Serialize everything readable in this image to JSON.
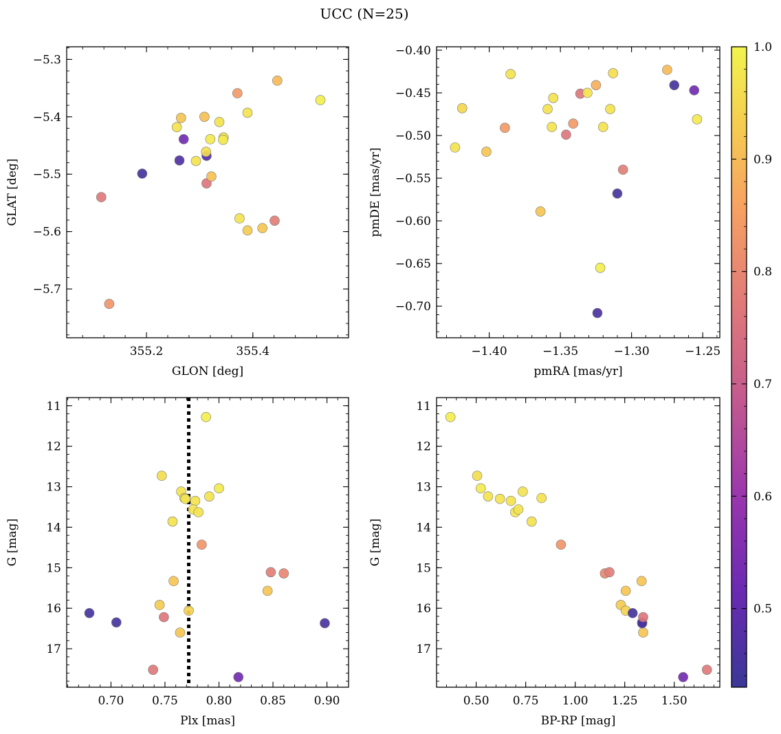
{
  "figure": {
    "title": "UCC (N=25)"
  },
  "colorbar": {
    "cmap": "plasma",
    "range": [
      0.43,
      1.0
    ],
    "ticks": [
      0.5,
      0.6,
      0.7,
      0.8,
      0.9,
      1.0
    ],
    "tick_labels": [
      "0.5",
      "0.6",
      "0.7",
      "0.8",
      "0.9",
      "1.0"
    ]
  },
  "chart_data": [
    {
      "type": "scatter",
      "title": "",
      "xlabel": "GLON [deg]",
      "ylabel": "GLAT [deg]",
      "xlim": [
        355.05,
        355.58
      ],
      "ylim": [
        -5.785,
        -5.278
      ],
      "y_inverted": false,
      "xticks": [
        355.2,
        355.4
      ],
      "xtick_labels": [
        "355.2",
        "355.4"
      ],
      "yticks": [
        -5.7,
        -5.6,
        -5.5,
        -5.4,
        -5.3
      ],
      "ytick_labels": [
        "−5.7",
        "−5.6",
        "−5.5",
        "−5.4",
        "−5.3"
      ],
      "points": [
        {
          "x": 355.192,
          "y": -5.499,
          "c": 0.45
        },
        {
          "x": 355.262,
          "y": -5.476,
          "c": 0.47
        },
        {
          "x": 355.313,
          "y": -5.468,
          "c": 0.47
        },
        {
          "x": 355.27,
          "y": -5.439,
          "c": 0.53
        },
        {
          "x": 355.115,
          "y": -5.54,
          "c": 0.77
        },
        {
          "x": 355.313,
          "y": -5.516,
          "c": 0.76
        },
        {
          "x": 355.441,
          "y": -5.581,
          "c": 0.78
        },
        {
          "x": 355.13,
          "y": -5.726,
          "c": 0.83
        },
        {
          "x": 355.371,
          "y": -5.359,
          "c": 0.84
        },
        {
          "x": 355.446,
          "y": -5.337,
          "c": 0.9
        },
        {
          "x": 355.265,
          "y": -5.402,
          "c": 0.92
        },
        {
          "x": 355.309,
          "y": -5.4,
          "c": 0.91
        },
        {
          "x": 355.322,
          "y": -5.504,
          "c": 0.91
        },
        {
          "x": 355.39,
          "y": -5.598,
          "c": 0.93
        },
        {
          "x": 355.418,
          "y": -5.594,
          "c": 0.92
        },
        {
          "x": 355.257,
          "y": -5.418,
          "c": 0.97
        },
        {
          "x": 355.312,
          "y": -5.461,
          "c": 0.96
        },
        {
          "x": 355.32,
          "y": -5.439,
          "c": 0.98
        },
        {
          "x": 355.293,
          "y": -5.477,
          "c": 0.97
        },
        {
          "x": 355.337,
          "y": -5.409,
          "c": 0.97
        },
        {
          "x": 355.345,
          "y": -5.436,
          "c": 0.97
        },
        {
          "x": 355.344,
          "y": -5.44,
          "c": 0.98
        },
        {
          "x": 355.39,
          "y": -5.393,
          "c": 0.97
        },
        {
          "x": 355.375,
          "y": -5.577,
          "c": 0.97
        },
        {
          "x": 355.527,
          "y": -5.371,
          "c": 0.99
        }
      ]
    },
    {
      "type": "scatter",
      "title": "",
      "xlabel": "pmRA [mas/yr]",
      "ylabel": "pmDE [mas/yr]",
      "xlim": [
        -1.437,
        -1.238
      ],
      "ylim": [
        -0.737,
        -0.396
      ],
      "y_inverted": false,
      "xticks": [
        -1.4,
        -1.35,
        -1.3,
        -1.25
      ],
      "xtick_labels": [
        "−1.40",
        "−1.35",
        "−1.30",
        "−1.25"
      ],
      "yticks": [
        -0.7,
        -0.65,
        -0.6,
        -0.55,
        -0.5,
        -0.45,
        -0.4
      ],
      "ytick_labels": [
        "−0.70",
        "−0.65",
        "−0.60",
        "−0.55",
        "−0.50",
        "−0.45",
        "−0.40"
      ],
      "points": [
        {
          "x": -1.27,
          "y": -0.441,
          "c": 0.45
        },
        {
          "x": -1.31,
          "y": -0.568,
          "c": 0.45
        },
        {
          "x": -1.324,
          "y": -0.708,
          "c": 0.46
        },
        {
          "x": -1.256,
          "y": -0.447,
          "c": 0.53
        },
        {
          "x": -1.346,
          "y": -0.499,
          "c": 0.76
        },
        {
          "x": -1.336,
          "y": -0.451,
          "c": 0.76
        },
        {
          "x": -1.306,
          "y": -0.54,
          "c": 0.78
        },
        {
          "x": -1.389,
          "y": -0.491,
          "c": 0.84
        },
        {
          "x": -1.341,
          "y": -0.486,
          "c": 0.84
        },
        {
          "x": -1.325,
          "y": -0.441,
          "c": 0.88
        },
        {
          "x": -1.275,
          "y": -0.423,
          "c": 0.9
        },
        {
          "x": -1.402,
          "y": -0.519,
          "c": 0.92
        },
        {
          "x": -1.364,
          "y": -0.589,
          "c": 0.92
        },
        {
          "x": -1.419,
          "y": -0.468,
          "c": 0.95
        },
        {
          "x": -1.424,
          "y": -0.514,
          "c": 0.97
        },
        {
          "x": -1.385,
          "y": -0.428,
          "c": 0.97
        },
        {
          "x": -1.355,
          "y": -0.456,
          "c": 0.97
        },
        {
          "x": -1.359,
          "y": -0.469,
          "c": 0.97
        },
        {
          "x": -1.356,
          "y": -0.49,
          "c": 0.97
        },
        {
          "x": -1.331,
          "y": -0.45,
          "c": 0.97
        },
        {
          "x": -1.313,
          "y": -0.427,
          "c": 0.96
        },
        {
          "x": -1.315,
          "y": -0.469,
          "c": 0.97
        },
        {
          "x": -1.32,
          "y": -0.49,
          "c": 0.97
        },
        {
          "x": -1.322,
          "y": -0.655,
          "c": 0.99
        },
        {
          "x": -1.254,
          "y": -0.481,
          "c": 0.98
        }
      ]
    },
    {
      "type": "scatter",
      "title": "",
      "xlabel": "Plx [mas]",
      "ylabel": "G [mag]",
      "xlim": [
        0.659,
        0.92
      ],
      "ylim": [
        17.95,
        10.8
      ],
      "y_inverted": true,
      "vline": {
        "x": 0.772,
        "style": "dotted"
      },
      "xticks": [
        0.7,
        0.75,
        0.8,
        0.85,
        0.9
      ],
      "xtick_labels": [
        "0.70",
        "0.75",
        "0.80",
        "0.85",
        "0.90"
      ],
      "yticks": [
        11,
        12,
        13,
        14,
        15,
        16,
        17
      ],
      "ytick_labels": [
        "11",
        "12",
        "13",
        "14",
        "15",
        "16",
        "17"
      ],
      "points": [
        {
          "x": 0.68,
          "y": 16.12,
          "c": 0.45
        },
        {
          "x": 0.705,
          "y": 16.35,
          "c": 0.45
        },
        {
          "x": 0.898,
          "y": 16.37,
          "c": 0.46
        },
        {
          "x": 0.818,
          "y": 17.7,
          "c": 0.53
        },
        {
          "x": 0.739,
          "y": 17.52,
          "c": 0.77
        },
        {
          "x": 0.749,
          "y": 16.22,
          "c": 0.76
        },
        {
          "x": 0.848,
          "y": 15.11,
          "c": 0.78
        },
        {
          "x": 0.86,
          "y": 15.14,
          "c": 0.8
        },
        {
          "x": 0.784,
          "y": 14.43,
          "c": 0.83
        },
        {
          "x": 0.845,
          "y": 15.57,
          "c": 0.92
        },
        {
          "x": 0.758,
          "y": 15.33,
          "c": 0.92
        },
        {
          "x": 0.745,
          "y": 15.92,
          "c": 0.93
        },
        {
          "x": 0.764,
          "y": 16.6,
          "c": 0.92
        },
        {
          "x": 0.772,
          "y": 16.06,
          "c": 0.94
        },
        {
          "x": 0.788,
          "y": 11.28,
          "c": 0.99
        },
        {
          "x": 0.747,
          "y": 12.73,
          "c": 0.96
        },
        {
          "x": 0.765,
          "y": 13.12,
          "c": 0.97
        },
        {
          "x": 0.8,
          "y": 13.04,
          "c": 0.98
        },
        {
          "x": 0.768,
          "y": 13.28,
          "c": 0.97
        },
        {
          "x": 0.778,
          "y": 13.35,
          "c": 0.97
        },
        {
          "x": 0.791,
          "y": 13.24,
          "c": 0.97
        },
        {
          "x": 0.776,
          "y": 13.56,
          "c": 0.97
        },
        {
          "x": 0.781,
          "y": 13.63,
          "c": 0.97
        },
        {
          "x": 0.757,
          "y": 13.86,
          "c": 0.97
        },
        {
          "x": 0.769,
          "y": 13.3,
          "c": 0.97
        }
      ]
    },
    {
      "type": "scatter",
      "title": "",
      "xlabel": "BP-RP [mag]",
      "ylabel": "G [mag]",
      "xlim": [
        0.3,
        1.73
      ],
      "ylim": [
        17.95,
        10.8
      ],
      "y_inverted": true,
      "xticks": [
        0.5,
        0.75,
        1.0,
        1.25,
        1.5
      ],
      "xtick_labels": [
        "0.50",
        "0.75",
        "1.00",
        "1.25",
        "1.50"
      ],
      "yticks": [
        11,
        12,
        13,
        14,
        15,
        16,
        17
      ],
      "ytick_labels": [
        "11",
        "12",
        "13",
        "14",
        "15",
        "16",
        "17"
      ],
      "points": [
        {
          "x": 0.37,
          "y": 11.28,
          "c": 0.99
        },
        {
          "x": 0.505,
          "y": 12.73,
          "c": 0.96
        },
        {
          "x": 0.523,
          "y": 13.04,
          "c": 0.98
        },
        {
          "x": 0.56,
          "y": 13.24,
          "c": 0.97
        },
        {
          "x": 0.62,
          "y": 13.3,
          "c": 0.97
        },
        {
          "x": 0.675,
          "y": 13.35,
          "c": 0.97
        },
        {
          "x": 0.735,
          "y": 13.12,
          "c": 0.97
        },
        {
          "x": 0.83,
          "y": 13.28,
          "c": 0.97
        },
        {
          "x": 0.697,
          "y": 13.63,
          "c": 0.97
        },
        {
          "x": 0.713,
          "y": 13.56,
          "c": 0.97
        },
        {
          "x": 0.78,
          "y": 13.86,
          "c": 0.97
        },
        {
          "x": 0.928,
          "y": 14.43,
          "c": 0.83
        },
        {
          "x": 1.15,
          "y": 15.14,
          "c": 0.8
        },
        {
          "x": 1.173,
          "y": 15.11,
          "c": 0.78
        },
        {
          "x": 1.335,
          "y": 15.33,
          "c": 0.92
        },
        {
          "x": 1.255,
          "y": 15.57,
          "c": 0.92
        },
        {
          "x": 1.23,
          "y": 15.92,
          "c": 0.93
        },
        {
          "x": 1.255,
          "y": 16.06,
          "c": 0.94
        },
        {
          "x": 1.343,
          "y": 16.6,
          "c": 0.92
        },
        {
          "x": 1.29,
          "y": 16.12,
          "c": 0.45
        },
        {
          "x": 1.338,
          "y": 16.35,
          "c": 0.45
        },
        {
          "x": 1.338,
          "y": 16.37,
          "c": 0.46
        },
        {
          "x": 1.343,
          "y": 16.22,
          "c": 0.76
        },
        {
          "x": 1.545,
          "y": 17.7,
          "c": 0.53
        },
        {
          "x": 1.665,
          "y": 17.52,
          "c": 0.77
        }
      ]
    }
  ]
}
